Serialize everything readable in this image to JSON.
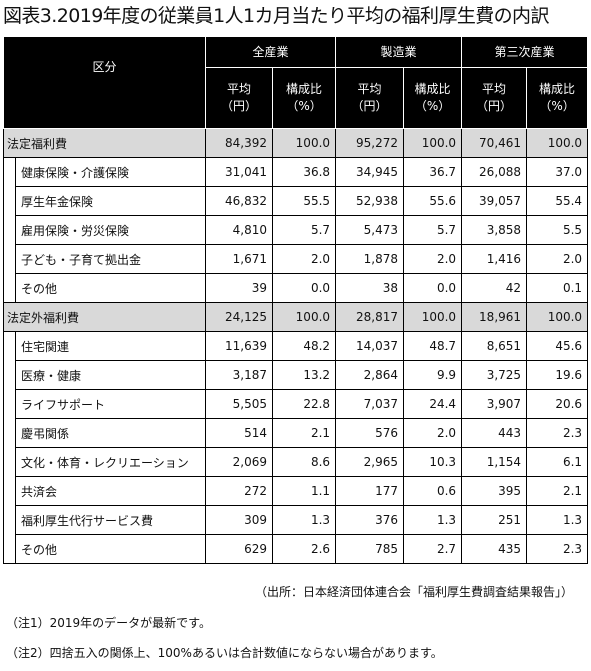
{
  "title": "図表3.2019年度の従業員1人1カ月当たり平均の福利厚生費の内訳",
  "header": {
    "kubun": "区分",
    "groups": [
      "全産業",
      "製造業",
      "第三次産業"
    ],
    "avg_line1": "平均",
    "avg_line2": "（円）",
    "ratio_line1": "構成比",
    "ratio_line2": "（%）"
  },
  "sections": [
    {
      "label": "法定福利費",
      "values": [
        "84,392",
        "100.0",
        "95,272",
        "100.0",
        "70,461",
        "100.0"
      ],
      "items": [
        {
          "label": "健康保険・介護保険",
          "values": [
            "31,041",
            "36.8",
            "34,945",
            "36.7",
            "26,088",
            "37.0"
          ]
        },
        {
          "label": "厚生年金保険",
          "values": [
            "46,832",
            "55.5",
            "52,938",
            "55.6",
            "39,057",
            "55.4"
          ]
        },
        {
          "label": "雇用保険・労災保険",
          "values": [
            "4,810",
            "5.7",
            "5,473",
            "5.7",
            "3,858",
            "5.5"
          ]
        },
        {
          "label": "子ども・子育て拠出金",
          "values": [
            "1,671",
            "2.0",
            "1,878",
            "2.0",
            "1,416",
            "2.0"
          ]
        },
        {
          "label": "その他",
          "values": [
            "39",
            "0.0",
            "38",
            "0.0",
            "42",
            "0.1"
          ]
        }
      ]
    },
    {
      "label": "法定外福利費",
      "values": [
        "24,125",
        "100.0",
        "28,817",
        "100.0",
        "18,961",
        "100.0"
      ],
      "items": [
        {
          "label": "住宅関連",
          "values": [
            "11,639",
            "48.2",
            "14,037",
            "48.7",
            "8,651",
            "45.6"
          ]
        },
        {
          "label": "医療・健康",
          "values": [
            "3,187",
            "13.2",
            "2,864",
            "9.9",
            "3,725",
            "19.6"
          ]
        },
        {
          "label": "ライフサポート",
          "values": [
            "5,505",
            "22.8",
            "7,037",
            "24.4",
            "3,907",
            "20.6"
          ]
        },
        {
          "label": "慶弔関係",
          "values": [
            "514",
            "2.1",
            "576",
            "2.0",
            "443",
            "2.3"
          ]
        },
        {
          "label": "文化・体育・レクリエーション",
          "values": [
            "2,069",
            "8.6",
            "2,965",
            "10.3",
            "1,154",
            "6.1"
          ]
        },
        {
          "label": "共済会",
          "values": [
            "272",
            "1.1",
            "177",
            "0.6",
            "395",
            "2.1"
          ]
        },
        {
          "label": "福利厚生代行サービス費",
          "values": [
            "309",
            "1.3",
            "376",
            "1.3",
            "251",
            "1.3"
          ]
        },
        {
          "label": "その他",
          "values": [
            "629",
            "2.6",
            "785",
            "2.7",
            "435",
            "2.3"
          ]
        }
      ]
    }
  ],
  "source": "（出所：日本経済団体連合会「福利厚生費調査結果報告」）",
  "notes": [
    "（注1）2019年のデータが最新です。",
    "（注2）四捨五入の関係上、100%あるいは合計数値にならない場合があります。"
  ]
}
